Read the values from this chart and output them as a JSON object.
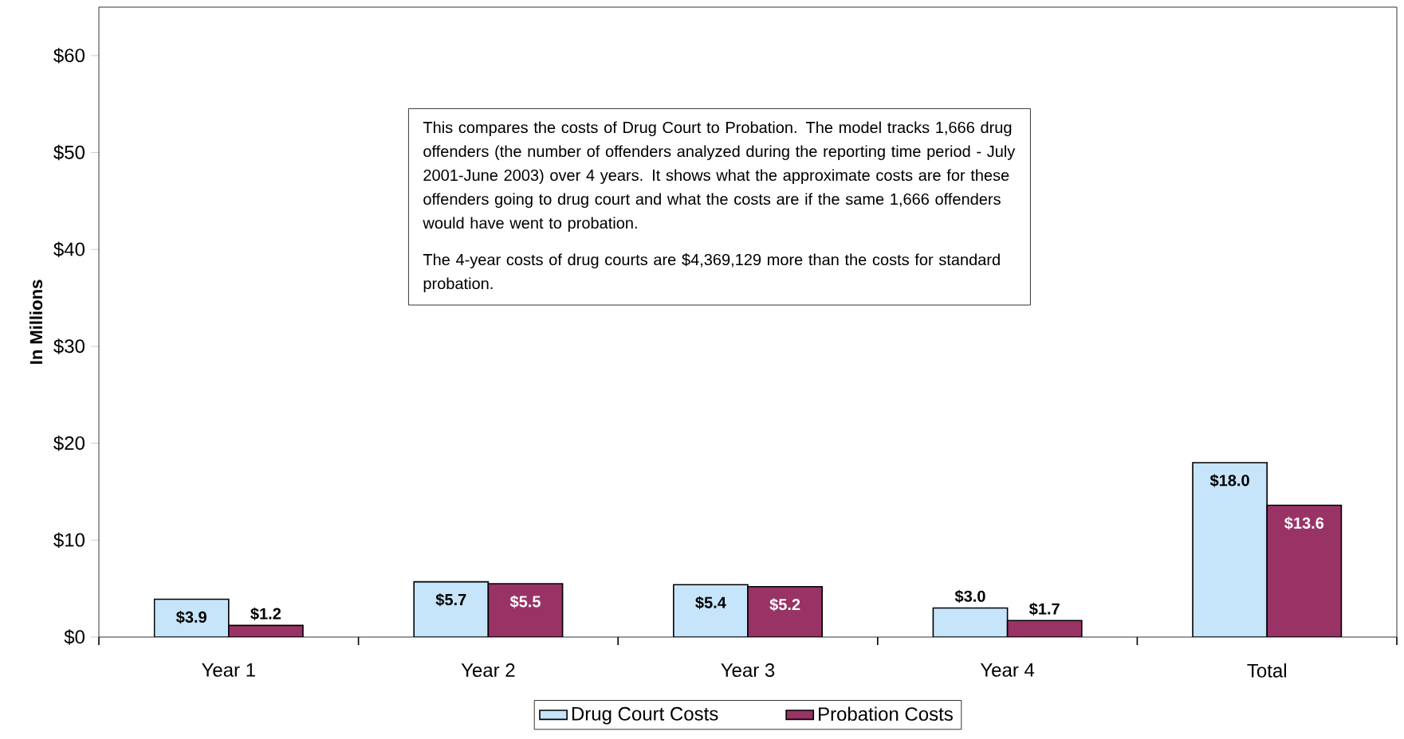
{
  "chart_data": {
    "type": "bar",
    "ylabel": "In Millions",
    "categories": [
      "Year 1",
      "Year 2",
      "Year 3",
      "Year 4",
      "Total"
    ],
    "series": [
      {
        "name": "Drug Court Costs",
        "color": "#c6e4fa",
        "values": [
          3.9,
          5.7,
          5.4,
          3.0,
          18.0
        ],
        "value_labels": [
          "$3.9",
          "$5.7",
          "$5.4",
          "$3.0",
          "$18.0"
        ]
      },
      {
        "name": "Probation Costs",
        "color": "#993366",
        "values": [
          1.2,
          5.5,
          5.2,
          1.7,
          13.6
        ],
        "value_labels": [
          "$1.2",
          "$5.5",
          "$5.2",
          "$1.7",
          "$13.6"
        ]
      }
    ],
    "ylim": [
      0,
      65
    ],
    "yticks": [
      {
        "value": 0,
        "label": "$0"
      },
      {
        "value": 10,
        "label": "$10"
      },
      {
        "value": 20,
        "label": "$20"
      },
      {
        "value": 30,
        "label": "$30"
      },
      {
        "value": 40,
        "label": "$40"
      },
      {
        "value": 50,
        "label": "$50"
      },
      {
        "value": 60,
        "label": "$60"
      }
    ],
    "grid": false,
    "legend": "bottom",
    "annotations": [
      "This compares the costs of Drug Court to Probation.  The model tracks 1,666 drug offenders (the number of offenders analyzed during the reporting time period - July 2001-June 2003) over 4 years.  It shows what the approximate costs are for these offenders going to drug court and what the costs are if the same 1,666 offenders would have went to probation.",
      " The 4-year costs of drug courts are $4,369,129 more than the costs for standard probation."
    ]
  }
}
